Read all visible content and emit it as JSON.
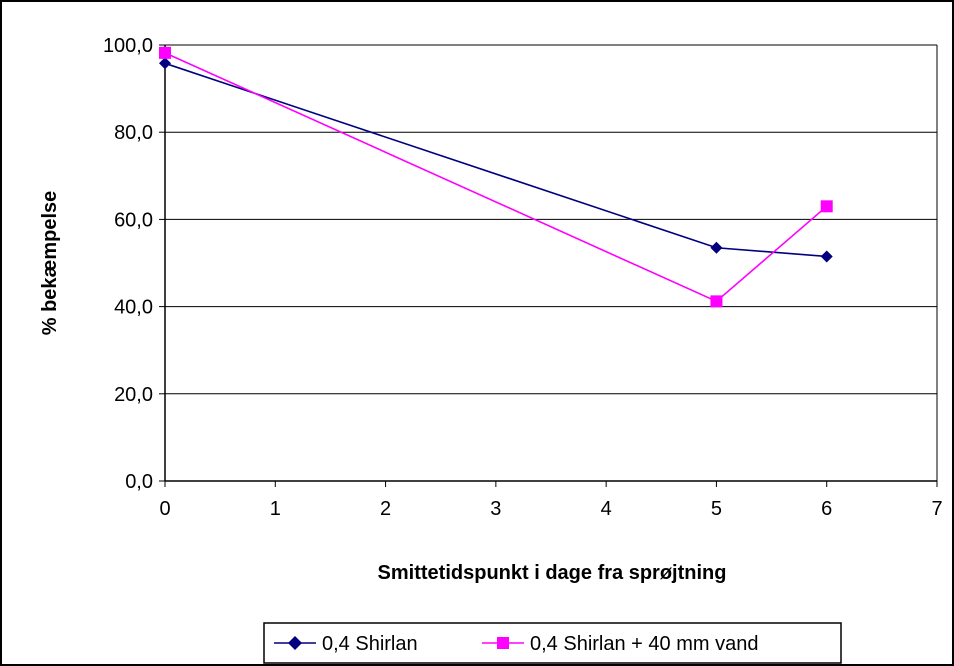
{
  "chart_data": {
    "type": "line",
    "title": "",
    "xlabel": "Smittetidspunkt i dage  fra sprøjtning",
    "ylabel": "% bekæmpelse",
    "xlim": [
      0,
      7
    ],
    "ylim": [
      0,
      100
    ],
    "x_ticks": [
      "0",
      "1",
      "2",
      "3",
      "4",
      "5",
      "6",
      "7"
    ],
    "y_ticks": [
      "0,0",
      "20,0",
      "40,0",
      "60,0",
      "80,0",
      "100,0"
    ],
    "grid": "horizontal",
    "legend_position": "bottom",
    "series": [
      {
        "name": "0,4 Shirlan",
        "color": "#000080",
        "marker": "diamond",
        "x": [
          0,
          5,
          6
        ],
        "y": [
          95.8,
          53.5,
          51.5
        ]
      },
      {
        "name": "0,4 Shirlan + 40 mm vand",
        "color": "#ff00ff",
        "marker": "square",
        "x": [
          0,
          5,
          6
        ],
        "y": [
          98.2,
          41.2,
          63.0
        ]
      }
    ]
  }
}
